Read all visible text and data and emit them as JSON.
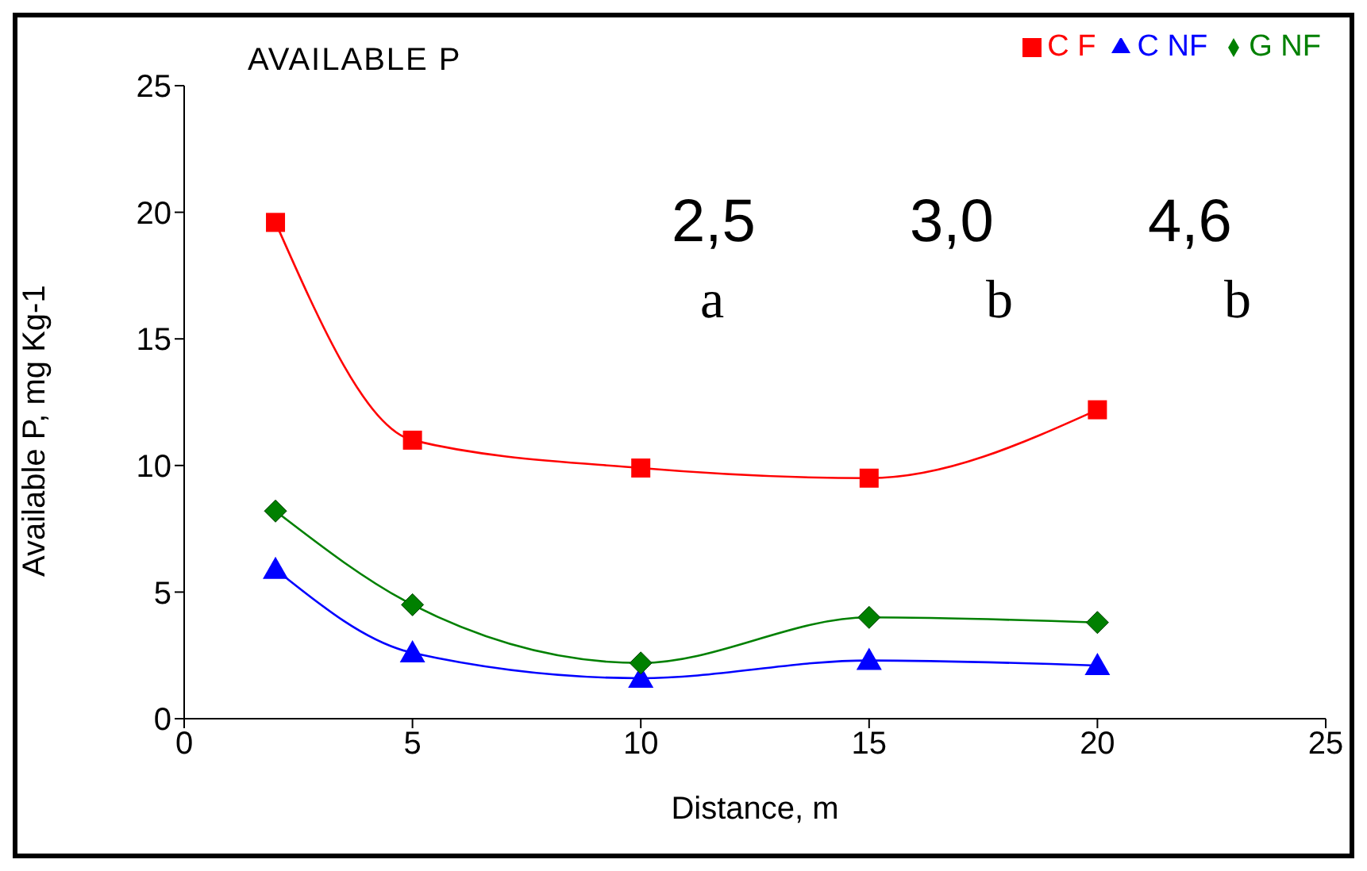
{
  "chart_data": {
    "type": "line",
    "title": "AVAILABLE P",
    "xlabel": "Distance, m",
    "ylabel": "Available P, mg Kg-1",
    "x": [
      2,
      5,
      10,
      15,
      20
    ],
    "series": [
      {
        "name": "C F",
        "color": "#ff0000",
        "marker": "square",
        "values": [
          19.6,
          11.0,
          9.9,
          9.5,
          12.2
        ]
      },
      {
        "name": "C NF",
        "color": "#0000ff",
        "marker": "triangle",
        "values": [
          5.9,
          2.6,
          1.6,
          2.3,
          2.1
        ]
      },
      {
        "name": "G NF",
        "color": "#008000",
        "marker": "diamond",
        "values": [
          8.2,
          4.5,
          2.2,
          4.0,
          3.8
        ]
      }
    ],
    "xlim": [
      0,
      25
    ],
    "xticks": [
      0,
      5,
      10,
      15,
      20,
      25
    ],
    "ylim": [
      0,
      25
    ],
    "yticks": [
      0,
      5,
      10,
      15,
      20,
      25
    ],
    "grid": false,
    "legend": "top right",
    "annotations": [
      "2,5",
      "3,0",
      "4,6",
      "a",
      "b",
      "b"
    ]
  }
}
